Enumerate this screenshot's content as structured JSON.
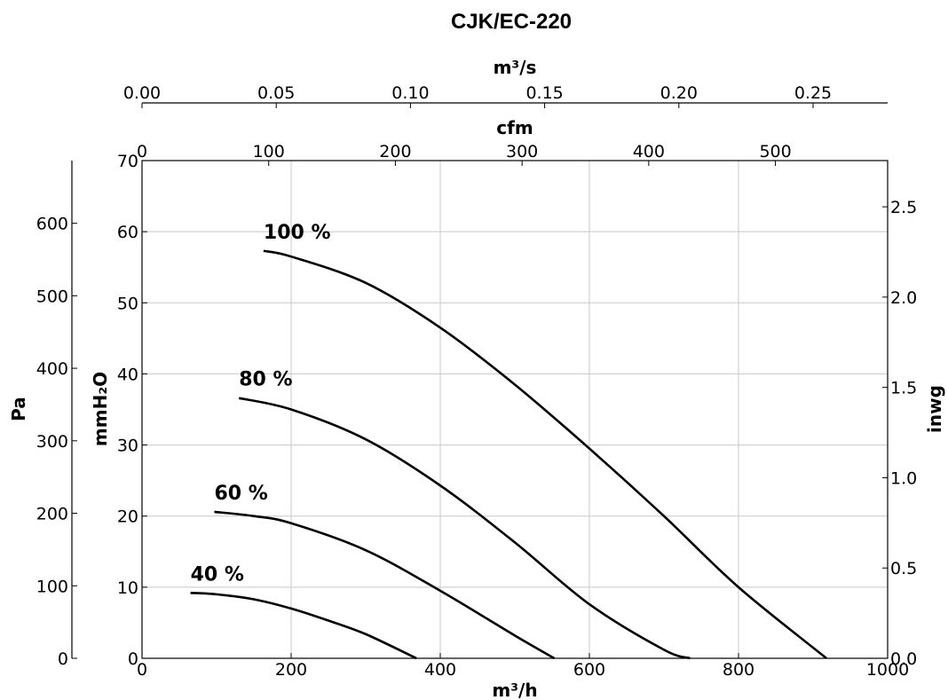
{
  "chart_data": {
    "type": "line",
    "title": "CJK/EC-220",
    "xlabel": "m³/h",
    "ylabel": "mmH₂O",
    "x_ticks": [
      "0",
      "200",
      "400",
      "600",
      "800",
      "1000"
    ],
    "y_ticks": [
      "0",
      "10",
      "20",
      "30",
      "40",
      "50",
      "60",
      "70"
    ],
    "xlim": [
      0,
      1000
    ],
    "ylim": [
      0,
      70
    ],
    "grid": true,
    "secondary_axes": {
      "left_outer": {
        "label": "Pa",
        "ticks": [
          "0",
          "100",
          "200",
          "300",
          "400",
          "500",
          "600"
        ]
      },
      "right": {
        "label": "inwg",
        "ticks": [
          "0.0",
          "0.5",
          "1.0",
          "1.5",
          "2.0",
          "2.5"
        ]
      },
      "top_inner": {
        "label": "cfm",
        "ticks": [
          "0",
          "100",
          "200",
          "300",
          "400",
          "500"
        ]
      },
      "top_outer": {
        "label": "m³/s",
        "ticks": [
          "0.00",
          "0.05",
          "0.10",
          "0.15",
          "0.20",
          "0.25"
        ]
      }
    },
    "series": [
      {
        "name": "100 %",
        "x": [
          163,
          200,
          300,
          400,
          500,
          600,
          700,
          800,
          918
        ],
        "y": [
          57.3,
          56.5,
          52.8,
          46.5,
          38.5,
          29.5,
          20,
          10,
          0
        ]
      },
      {
        "name": "80 %",
        "x": [
          130,
          200,
          300,
          400,
          500,
          600,
          700,
          735
        ],
        "y": [
          36.6,
          35,
          30.8,
          24.3,
          16.3,
          7.6,
          1.2,
          0
        ]
      },
      {
        "name": "60 %",
        "x": [
          97,
          150,
          200,
          300,
          400,
          500,
          553
        ],
        "y": [
          20.6,
          20,
          19,
          15.2,
          9.5,
          3.2,
          0
        ]
      },
      {
        "name": "40 %",
        "x": [
          65,
          100,
          150,
          200,
          250,
          300,
          368
        ],
        "y": [
          9.2,
          9,
          8.3,
          7,
          5.3,
          3.4,
          0
        ]
      }
    ]
  }
}
